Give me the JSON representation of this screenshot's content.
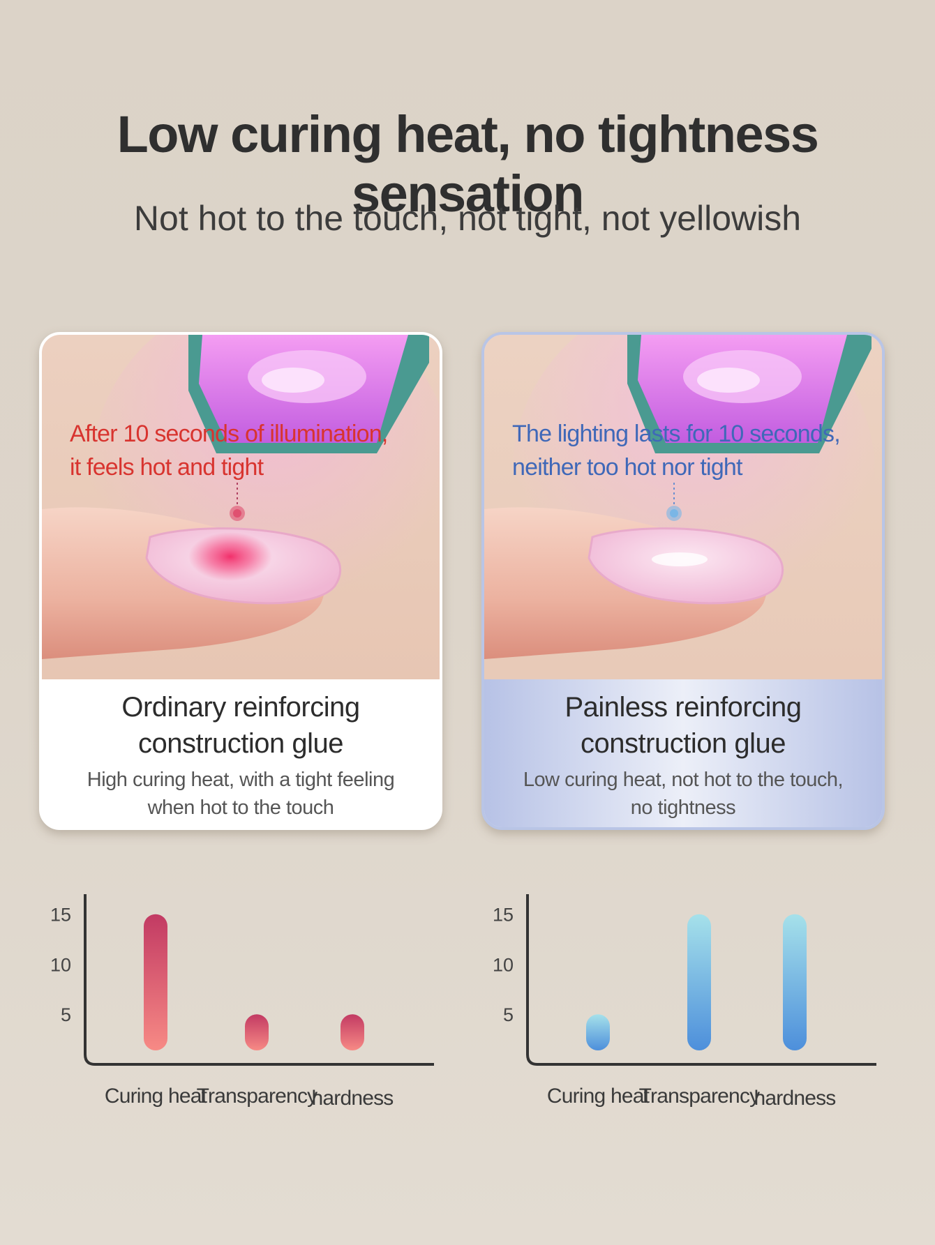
{
  "headline": "Low curing heat, no tightness sensation",
  "subheadline": "Not hot to the touch, not tight, not yellowish",
  "cards": [
    {
      "note_lines": [
        "After 10 seconds of illumination,",
        "it feels hot and tight"
      ],
      "title_lines": [
        "Ordinary reinforcing",
        "construction glue"
      ],
      "desc_lines": [
        "High curing heat, with a tight feeling",
        "when hot to the touch"
      ],
      "note_color": "#d8342f"
    },
    {
      "note_lines": [
        "The lighting lasts for 10 seconds,",
        "neither too hot nor tight"
      ],
      "title_lines": [
        "Painless reinforcing",
        "construction glue"
      ],
      "desc_lines": [
        "Low curing heat, not hot to the touch,",
        "no tightness"
      ],
      "note_color": "#3f68b8"
    }
  ],
  "chart_data": [
    {
      "type": "bar",
      "categories": [
        "Curing heat",
        "Transparency",
        "hardness"
      ],
      "values": [
        15,
        5,
        5
      ],
      "ylim": [
        0,
        17
      ],
      "yticks": [
        5,
        10,
        15
      ],
      "grid": false,
      "colors": {
        "top": "#c23a63",
        "bottom": "#f78a85"
      }
    },
    {
      "type": "bar",
      "categories": [
        "Curing heat",
        "Transparency",
        "hardness"
      ],
      "values": [
        5,
        15,
        15
      ],
      "ylim": [
        0,
        17
      ],
      "yticks": [
        5,
        10,
        15
      ],
      "grid": false,
      "colors": {
        "top": "#a6e1ea",
        "bottom": "#4d8fdb"
      }
    }
  ]
}
